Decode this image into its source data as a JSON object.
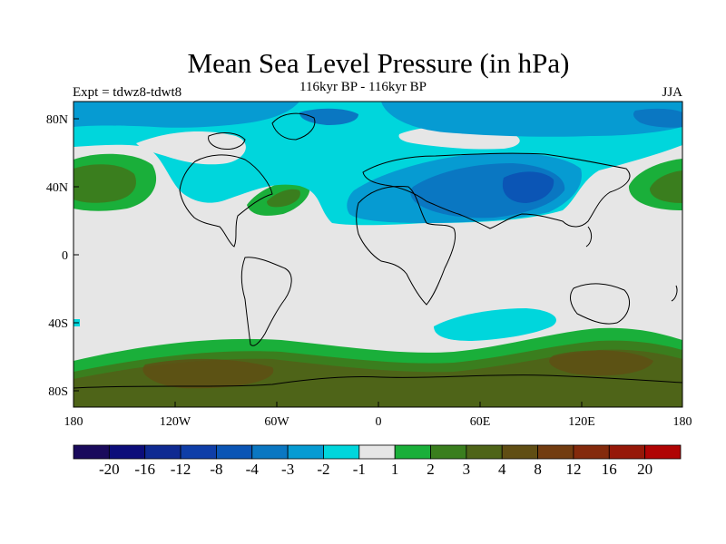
{
  "title": "Mean Sea Level Pressure (in hPa)",
  "left_label": "Expt = tdwz8-tdwt8",
  "center_label": "116kyr BP - 116kyr BP",
  "right_label": "JJA",
  "lat_ticks": [
    "80N",
    "40N",
    "0",
    "40S",
    "80S"
  ],
  "lon_ticks": [
    "180",
    "120W",
    "60W",
    "0",
    "60E",
    "120E",
    "180"
  ],
  "colorbar": {
    "colors": [
      "#1a0a5c",
      "#0c0d7a",
      "#0f2a92",
      "#0f3ea8",
      "#0b55b5",
      "#0a77c2",
      "#069bd2",
      "#00d6dc",
      "#e6e6e6",
      "#1aaf3a",
      "#3a7e1e",
      "#4e6418",
      "#604e14",
      "#723c10",
      "#842a0c",
      "#961808",
      "#b00404"
    ],
    "labels": [
      "-20",
      "-16",
      "-12",
      "-8",
      "-4",
      "-3",
      "-2",
      "-1",
      "1",
      "2",
      "3",
      "4",
      "8",
      "12",
      "16",
      "20"
    ]
  },
  "colors": {
    "background": "#e6e6e6",
    "low_1": "#00d6dc",
    "low_2": "#069bd2",
    "low_3": "#0a77c2",
    "low_4": "#0b55b5",
    "high_1": "#1aaf3a",
    "high_2": "#3a7e1e",
    "high_3": "#4e6418",
    "high_4": "#604e14"
  }
}
